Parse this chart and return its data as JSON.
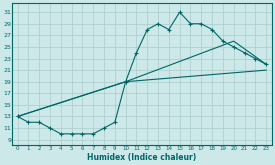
{
  "xlabel": "Humidex (Indice chaleur)",
  "bg_color": "#cce8e8",
  "grid_color": "#aacccc",
  "line_color": "#006666",
  "xlim": [
    -0.5,
    23.5
  ],
  "ylim": [
    8.0,
    32.5
  ],
  "xticks": [
    0,
    1,
    2,
    3,
    4,
    5,
    6,
    7,
    8,
    9,
    10,
    11,
    12,
    13,
    14,
    15,
    16,
    17,
    18,
    19,
    20,
    21,
    22,
    23
  ],
  "yticks": [
    9,
    11,
    13,
    15,
    17,
    19,
    21,
    23,
    25,
    27,
    29,
    31
  ],
  "line1_x": [
    0,
    1,
    2,
    3,
    4,
    5,
    6,
    7,
    8,
    9,
    10,
    11,
    12,
    13,
    14,
    15,
    16,
    17,
    18,
    19,
    20,
    21,
    22,
    23
  ],
  "line1_y": [
    13,
    12,
    12,
    11,
    10,
    10,
    10,
    10,
    11,
    12,
    19,
    24,
    28,
    29,
    28,
    31,
    29,
    29,
    28,
    26,
    25,
    24,
    23,
    22
  ],
  "line2_x": [
    0,
    10,
    20,
    23
  ],
  "line2_y": [
    13,
    19,
    26,
    22
  ],
  "line3_x": [
    0,
    10,
    23
  ],
  "line3_y": [
    13,
    19,
    21
  ]
}
